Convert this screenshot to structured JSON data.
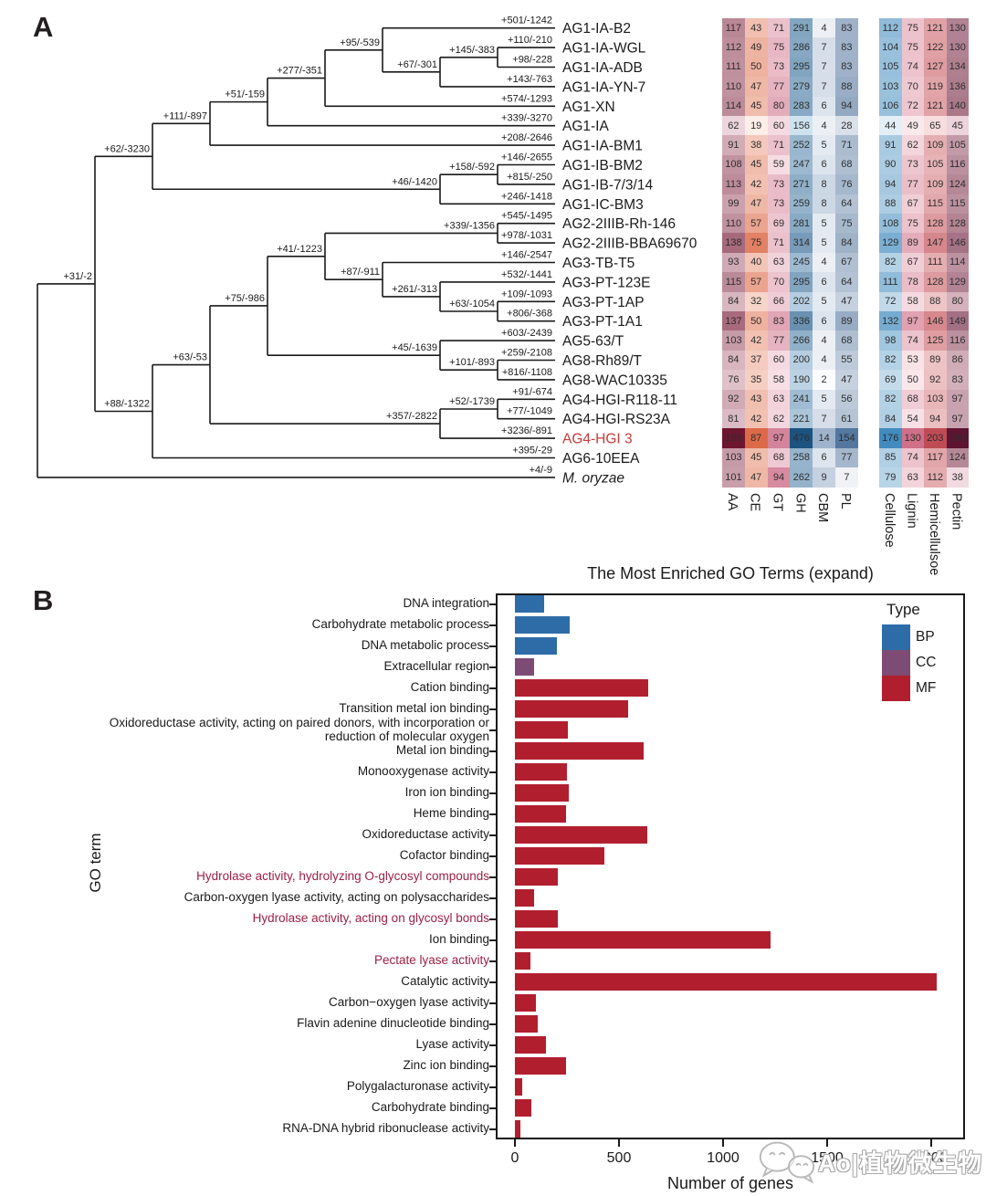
{
  "figure": {
    "panel_a_label": "A",
    "panel_b_label": "B"
  },
  "watermark": {
    "text": "Ao|植物微生物",
    "icon": "wechat-logo"
  },
  "phylo": {
    "highlight_color": "#c43c39",
    "tree": {
      "children": [
        {
          "label": "+31/-2",
          "children": [
            {
              "label": "+62/-3230",
              "children": [
                {
                  "label": "+111/-897",
                  "children": [
                    {
                      "label": "+51/-159",
                      "children": [
                        {
                          "label": "+277/-351",
                          "children": [
                            {
                              "label": "+95/-539",
                              "children": [
                                {
                                  "label": "+501/-1242",
                                  "leaf": "AG1-IA-B2"
                                },
                                {
                                  "label": "+67/-301",
                                  "children": [
                                    {
                                      "label": "+145/-383",
                                      "children": [
                                        {
                                          "label": "+110/-210",
                                          "leaf": "AG1-IA-WGL"
                                        },
                                        {
                                          "label": "+98/-228",
                                          "leaf": "AG1-IA-ADB"
                                        }
                                      ]
                                    },
                                    {
                                      "label": "+143/-763",
                                      "leaf": "AG1-IA-YN-7"
                                    }
                                  ]
                                }
                              ]
                            },
                            {
                              "label": "+574/-1293",
                              "leaf": "AG1-XN"
                            }
                          ]
                        },
                        {
                          "label": "+339/-3270",
                          "leaf": "AG1-IA"
                        }
                      ]
                    },
                    {
                      "label": "+208/-2646",
                      "leaf": "AG1-IA-BM1"
                    }
                  ]
                },
                {
                  "label": "+46/-1420",
                  "children": [
                    {
                      "label": "+158/-592",
                      "children": [
                        {
                          "label": "+146/-2655",
                          "leaf": "AG1-IB-BM2"
                        },
                        {
                          "label": "+815/-250",
                          "leaf": "AG1-IB-7/3/14"
                        }
                      ]
                    },
                    {
                      "label": "+246/-1418",
                      "leaf": "AG1-IC-BM3"
                    }
                  ]
                }
              ]
            },
            {
              "label": "+88/-1322",
              "children": [
                {
                  "label": "+63/-53",
                  "children": [
                    {
                      "label": "+75/-986",
                      "children": [
                        {
                          "label": "+41/-1223",
                          "children": [
                            {
                              "label": "+339/-1356",
                              "children": [
                                {
                                  "label": "+545/-1495",
                                  "leaf": "AG2-2IIIB-Rh-146"
                                },
                                {
                                  "label": "+978/-1031",
                                  "leaf": "AG2-2IIIB-BBA69670"
                                }
                              ]
                            },
                            {
                              "label": "+87/-911",
                              "children": [
                                {
                                  "label": "+146/-2547",
                                  "leaf": "AG3-TB-T5"
                                },
                                {
                                  "label": "+261/-313",
                                  "children": [
                                    {
                                      "label": "+532/-1441",
                                      "leaf": "AG3-PT-123E"
                                    },
                                    {
                                      "label": "+63/-1054",
                                      "children": [
                                        {
                                          "label": "+109/-1093",
                                          "leaf": "AG3-PT-1AP"
                                        },
                                        {
                                          "label": "+806/-368",
                                          "leaf": "AG3-PT-1A1"
                                        }
                                      ]
                                    }
                                  ]
                                }
                              ]
                            }
                          ]
                        },
                        {
                          "label": "+45/-1639",
                          "children": [
                            {
                              "label": "+603/-2439",
                              "leaf": "AG5-63/T"
                            },
                            {
                              "label": "+101/-893",
                              "children": [
                                {
                                  "label": "+259/-2108",
                                  "leaf": "AG8-Rh89/T"
                                },
                                {
                                  "label": "+816/-1108",
                                  "leaf": "AG8-WAC10335"
                                }
                              ]
                            }
                          ]
                        }
                      ]
                    },
                    {
                      "label": "+357/-2822",
                      "children": [
                        {
                          "label": "+52/-1739",
                          "children": [
                            {
                              "label": "+91/-674",
                              "leaf": "AG4-HGI-R118-11"
                            },
                            {
                              "label": "+77/-1049",
                              "leaf": "AG4-HGI-RS23A"
                            }
                          ]
                        },
                        {
                          "label": "+3236/-891",
                          "leaf": "AG4-HGI 3",
                          "highlight": true
                        }
                      ]
                    }
                  ]
                },
                {
                  "label": "+395/-29",
                  "leaf": "AG6-10EEA"
                }
              ]
            }
          ]
        },
        {
          "label": "+4/-9",
          "leaf": "M. oryzae",
          "italic": true
        }
      ]
    }
  },
  "chart_data": [
    {
      "id": "cazyme-substrate-heatmap",
      "type": "heatmap",
      "rows": [
        "AG1-IA-B2",
        "AG1-IA-WGL",
        "AG1-IA-ADB",
        "AG1-IA-YN-7",
        "AG1-XN",
        "AG1-IA",
        "AG1-IA-BM1",
        "AG1-IB-BM2",
        "AG1-IB-7/3/14",
        "AG1-IC-BM3",
        "AG2-2IIIB-Rh-146",
        "AG2-2IIIB-BBA69670",
        "AG3-TB-T5",
        "AG3-PT-123E",
        "AG3-PT-1AP",
        "AG3-PT-1A1",
        "AG5-63/T",
        "AG8-Rh89/T",
        "AG8-WAC10335",
        "AG4-HGI-R118-11",
        "AG4-HGI-RS23A",
        "AG4-HGI 3",
        "AG6-10EEA",
        "M. oryzae"
      ],
      "row_highlight": "AG4-HGI 3",
      "blocks": [
        {
          "columns": [
            "AA",
            "CE",
            "GT",
            "GH",
            "CBM",
            "PL"
          ],
          "palette": {
            "AA": [
              "#ecd5dc",
              "#6e1530"
            ],
            "CE": [
              "#fdeee8",
              "#dc6a48"
            ],
            "GT": [
              "#f7dfe5",
              "#d4849a"
            ],
            "GH": [
              "#cfe2f0",
              "#1c537f"
            ],
            "CBM": [
              "#fbfcfd",
              "#9fb3cc"
            ],
            "PL": [
              "#f0f2f5",
              "#53779f"
            ]
          },
          "values": [
            [
              117,
              43,
              71,
              291,
              4,
              83
            ],
            [
              112,
              49,
              75,
              286,
              7,
              83
            ],
            [
              111,
              50,
              73,
              295,
              7,
              83
            ],
            [
              110,
              47,
              77,
              279,
              7,
              88
            ],
            [
              114,
              45,
              80,
              283,
              6,
              94
            ],
            [
              62,
              19,
              60,
              156,
              4,
              28
            ],
            [
              91,
              38,
              71,
              252,
              5,
              71
            ],
            [
              108,
              45,
              59,
              247,
              6,
              68
            ],
            [
              113,
              42,
              73,
              271,
              8,
              76
            ],
            [
              99,
              47,
              73,
              259,
              8,
              64
            ],
            [
              110,
              57,
              69,
              281,
              5,
              75
            ],
            [
              138,
              75,
              71,
              314,
              5,
              84
            ],
            [
              93,
              40,
              63,
              245,
              4,
              67
            ],
            [
              115,
              57,
              70,
              295,
              6,
              64
            ],
            [
              84,
              32,
              66,
              202,
              5,
              47
            ],
            [
              137,
              50,
              83,
              336,
              6,
              89
            ],
            [
              103,
              42,
              77,
              266,
              4,
              68
            ],
            [
              84,
              37,
              60,
              200,
              4,
              55
            ],
            [
              76,
              35,
              58,
              190,
              2,
              47
            ],
            [
              92,
              43,
              63,
              241,
              5,
              56
            ],
            [
              81,
              42,
              62,
              221,
              7,
              61
            ],
            [
              198,
              87,
              97,
              476,
              14,
              154
            ],
            [
              103,
              45,
              68,
              258,
              6,
              77
            ],
            [
              101,
              47,
              94,
              262,
              9,
              7
            ]
          ]
        },
        {
          "columns": [
            "Cellulose",
            "Lignin",
            "Hemicellulsoe",
            "Pectin"
          ],
          "palette": {
            "Cellulose": [
              "#e3eef6",
              "#418bbf"
            ],
            "Lignin": [
              "#fae9ec",
              "#cf6f88"
            ],
            "Hemicellulsoe": [
              "#f7dddd",
              "#bf4c55"
            ],
            "Pectin": [
              "#f2dae1",
              "#5e1430"
            ]
          },
          "values": [
            [
              112,
              75,
              121,
              130
            ],
            [
              104,
              75,
              122,
              130
            ],
            [
              105,
              74,
              127,
              134
            ],
            [
              103,
              70,
              119,
              136
            ],
            [
              106,
              72,
              121,
              140
            ],
            [
              44,
              49,
              65,
              45
            ],
            [
              91,
              62,
              109,
              105
            ],
            [
              90,
              73,
              105,
              116
            ],
            [
              94,
              77,
              109,
              124
            ],
            [
              88,
              67,
              115,
              115
            ],
            [
              108,
              75,
              128,
              128
            ],
            [
              129,
              89,
              147,
              146
            ],
            [
              82,
              67,
              111,
              114
            ],
            [
              111,
              78,
              128,
              129
            ],
            [
              72,
              58,
              88,
              80
            ],
            [
              132,
              97,
              146,
              149
            ],
            [
              98,
              74,
              125,
              116
            ],
            [
              82,
              53,
              89,
              86
            ],
            [
              69,
              50,
              92,
              83
            ],
            [
              82,
              68,
              103,
              97
            ],
            [
              84,
              54,
              94,
              97
            ],
            [
              176,
              130,
              203,
              246
            ],
            [
              85,
              74,
              117,
              124
            ],
            [
              79,
              63,
              112,
              38
            ]
          ]
        }
      ]
    },
    {
      "id": "go-enrichment",
      "type": "bar",
      "title": "The Most Enriched GO Terms (expand)",
      "xlabel": "Number of genes",
      "ylabel": "GO term",
      "legend_title": "Type",
      "legend_position": "top-right-inside",
      "legend": [
        {
          "label": "BP",
          "color": "#2e6ca8"
        },
        {
          "label": "CC",
          "color": "#7d4b74"
        },
        {
          "label": "MF",
          "color": "#b11f2f"
        }
      ],
      "xlim": [
        0,
        2150
      ],
      "xticks": [
        0,
        500,
        1000,
        1500,
        2000
      ],
      "grid": false,
      "highlight_label_color": "#9c1f45",
      "bars": [
        {
          "label": "DNA integration",
          "type": "BP",
          "value": 140
        },
        {
          "label": "Carbohydrate metabolic process",
          "type": "BP",
          "value": 265
        },
        {
          "label": "DNA metabolic process",
          "type": "BP",
          "value": 200
        },
        {
          "label": "Extracellular region",
          "type": "CC",
          "value": 90
        },
        {
          "label": "Cation binding",
          "type": "MF",
          "value": 640
        },
        {
          "label": "Transition metal ion binding",
          "type": "MF",
          "value": 545
        },
        {
          "label": "Oxidoreductase activity, acting on paired donors, with incorporation or reduction of molecular oxygen",
          "type": "MF",
          "value": 255
        },
        {
          "label": "Metal ion binding",
          "type": "MF",
          "value": 620
        },
        {
          "label": "Monooxygenase activity",
          "type": "MF",
          "value": 250
        },
        {
          "label": "Iron ion binding",
          "type": "MF",
          "value": 260
        },
        {
          "label": "Heme binding",
          "type": "MF",
          "value": 245
        },
        {
          "label": "Oxidoreductase activity",
          "type": "MF",
          "value": 635
        },
        {
          "label": "Cofactor binding",
          "type": "MF",
          "value": 430
        },
        {
          "label": "Hydrolase activity, hydrolyzing O-glycosyl compounds",
          "type": "MF",
          "value": 205,
          "highlight": true
        },
        {
          "label": "Carbon-oxygen lyase activity, acting on polysaccharides",
          "type": "MF",
          "value": 90
        },
        {
          "label": "Hydrolase activity, acting on glycosyl bonds",
          "type": "MF",
          "value": 205,
          "highlight": true
        },
        {
          "label": "Ion binding",
          "type": "MF",
          "value": 1230
        },
        {
          "label": "Pectate lyase activity",
          "type": "MF",
          "value": 75,
          "highlight": true
        },
        {
          "label": "Catalytic activity",
          "type": "MF",
          "value": 2025
        },
        {
          "label": "Carbon−oxygen lyase activity",
          "type": "MF",
          "value": 100
        },
        {
          "label": "Flavin adenine dinucleotide binding",
          "type": "MF",
          "value": 110
        },
        {
          "label": "Lyase activity",
          "type": "MF",
          "value": 150
        },
        {
          "label": "Zinc ion binding",
          "type": "MF",
          "value": 245
        },
        {
          "label": "Polygalacturonase activity",
          "type": "MF",
          "value": 35
        },
        {
          "label": "Carbohydrate binding",
          "type": "MF",
          "value": 80
        },
        {
          "label": "RNA-DNA hybrid ribonuclease activity",
          "type": "MF",
          "value": 25
        }
      ]
    }
  ]
}
